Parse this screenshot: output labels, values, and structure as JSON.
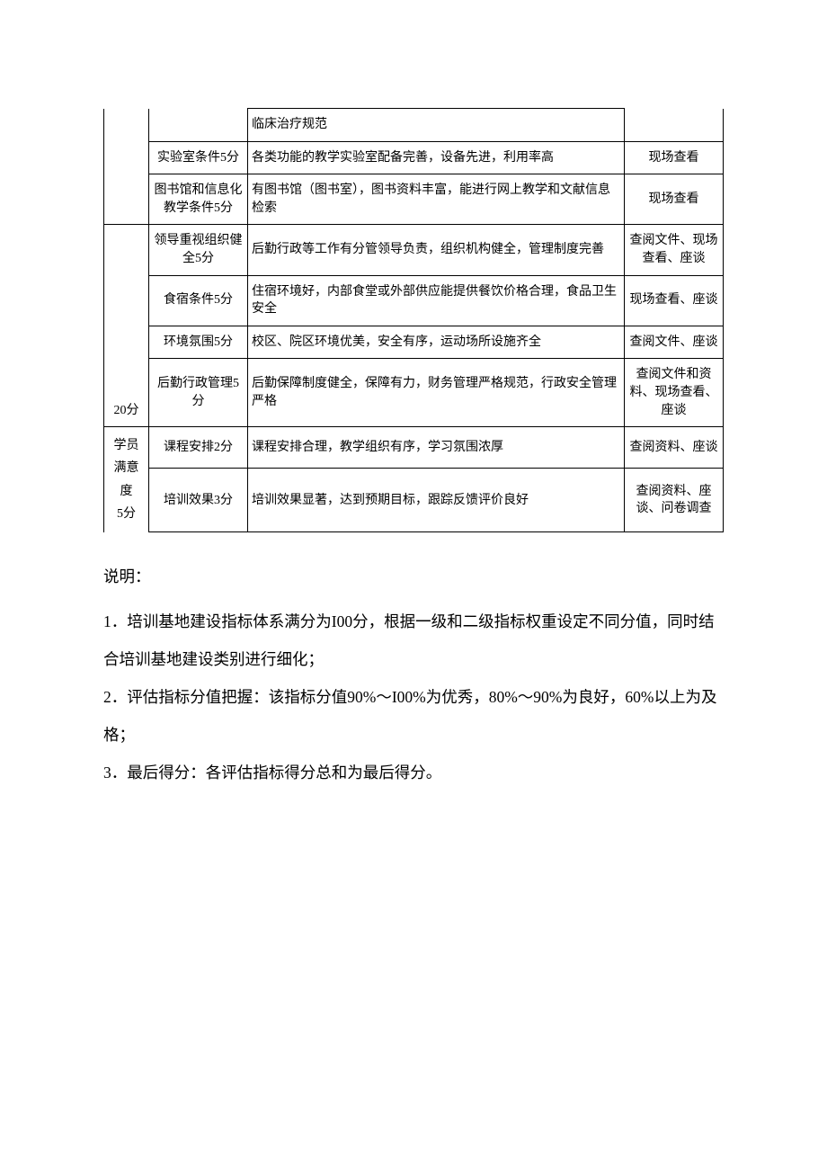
{
  "table": {
    "rows": [
      {
        "col1": "",
        "col2": "",
        "col3": "临床治疗规范",
        "col4": "",
        "col1NoTop": true,
        "col1NoBottom": true,
        "col2NoTop": true,
        "col4NoTop": true
      },
      {
        "col1": "",
        "col2": "实验室条件5分",
        "col3": "各类功能的教学实验室配备完善，设备先进，利用率高",
        "col4": "现场查看",
        "col1NoTop": true,
        "col1NoBottom": true
      },
      {
        "col1": "",
        "col2": "图书馆和信息化教学条件5分",
        "col3": "有图书馆（图书室），图书资料丰富，能进行网上教学和文献信息检索",
        "col4": "现场查看",
        "col1NoTop": true
      },
      {
        "col1": "",
        "col2": "领导重视组织健全5分",
        "col3": "后勤行政等工作有分管领导负责，组织机构健全，管理制度完善",
        "col4": "查阅文件、现场查看、座谈",
        "col1NoBottom": true
      },
      {
        "col1": "",
        "col2": "食宿条件5分",
        "col3": "住宿环境好，内部食堂或外部供应能提供餐饮价格合理，食品卫生安全",
        "col4": "现场查看、座谈",
        "col1NoTop": true,
        "col1NoBottom": true
      },
      {
        "col1": "",
        "col2": "环境氛围5分",
        "col3": "校区、院区环境优美，安全有序，运动场所设施齐全",
        "col4": "查阅文件、座谈",
        "col1NoTop": true,
        "col1NoBottom": true
      },
      {
        "col1": "20分",
        "col2": "后勤行政管理5分",
        "col3": "后勤保障制度健全，保障有力，财务管理严格规范，行政安全管理严格",
        "col4": "查阅文件和资料、现场查看、座谈",
        "col1NoTop": true,
        "col1VAlign": "bottom"
      },
      {
        "col1Html": true,
        "col1Lines": [
          "学员",
          "满意",
          "度",
          "5分"
        ],
        "col2": "课程安排2分",
        "col3": "课程安排合理，教学组织有序，学习氛围浓厚",
        "col4": "查阅资料、座谈",
        "col1NoBottom": true,
        "col1Rowspan": 2
      },
      {
        "col2": "培训效果3分",
        "col3": "培训效果显著，达到预期目标，跟踪反馈评价良好",
        "col4": "查阅资料、座谈、问卷调查",
        "skipCol1": true
      }
    ]
  },
  "notes": {
    "title": "说明：",
    "items": [
      "1．培训基地建设指标体系满分为I00分，根据一级和二级指标权重设定不同分值，同时结合培训基地建设类别进行细化；",
      "2．评估指标分值把握：该指标分值90%～I00%为优秀，80%～90%为良好，60%以上为及格；",
      "3．最后得分：各评估指标得分总和为最后得分。"
    ]
  }
}
